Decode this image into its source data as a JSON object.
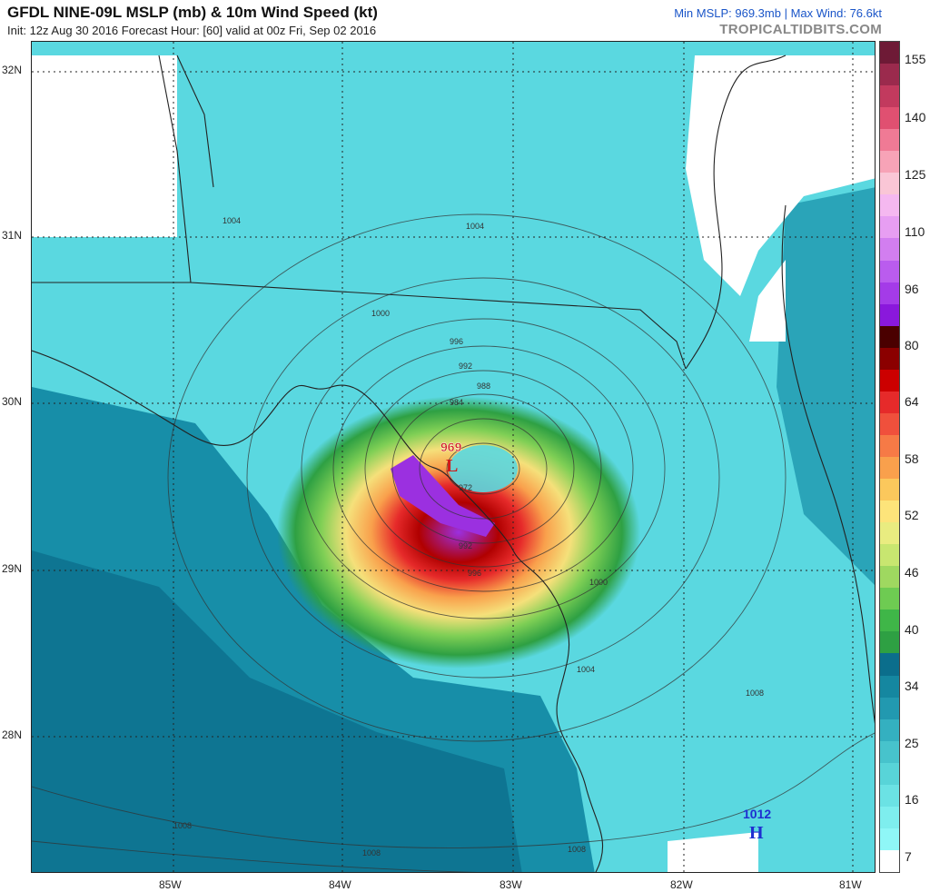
{
  "header": {
    "title": "GFDL NINE-09L MSLP (mb) & 10m Wind Speed (kt)",
    "subtitle": "Init: 12z Aug 30 2016   Forecast Hour: [60]   valid at 00z Fri, Sep 02 2016",
    "stats": "Min MSLP: 969.3mb | Max Wind: 76.6kt",
    "brand": "TROPICALTIDBITS.COM"
  },
  "map": {
    "lat_labels": [
      "32N",
      "31N",
      "30N",
      "29N",
      "28N"
    ],
    "lon_labels": [
      "85W",
      "84W",
      "83W",
      "82W",
      "81W"
    ],
    "low_center": {
      "pressure": "969",
      "symbol": "L"
    },
    "high_center": {
      "pressure": "1012",
      "symbol": "H"
    },
    "isobar_labels": [
      "1004",
      "1004",
      "1000",
      "996",
      "992",
      "988",
      "984",
      "972",
      "992",
      "996",
      "1000",
      "1004",
      "1008",
      "1008",
      "1008",
      "1008"
    ]
  },
  "colorbar": {
    "labels": [
      "155",
      "140",
      "125",
      "110",
      "96",
      "80",
      "64",
      "58",
      "52",
      "46",
      "40",
      "34",
      "25",
      "16",
      "7"
    ],
    "colors": [
      "#6e1a36",
      "#9b2a4d",
      "#c23a5e",
      "#e05071",
      "#f07a95",
      "#f7a3b7",
      "#fac6d6",
      "#f5b8f0",
      "#e79ef2",
      "#d27ef0",
      "#ba5cee",
      "#a43be8",
      "#8a18dc",
      "#4a0000",
      "#8b0000",
      "#cc0000",
      "#e62a2a",
      "#f0503c",
      "#f67a46",
      "#f9a04c",
      "#fbc85c",
      "#fde47a",
      "#e9ec80",
      "#c8e670",
      "#9fd860",
      "#6ecb52",
      "#3fb648",
      "#2ea043",
      "#0b6e8c",
      "#1587a0",
      "#2299b0",
      "#34b0c0",
      "#47c3cc",
      "#58d4d8",
      "#6be2e4",
      "#7eeeee",
      "#8ff7f7",
      "#ffffff"
    ]
  }
}
